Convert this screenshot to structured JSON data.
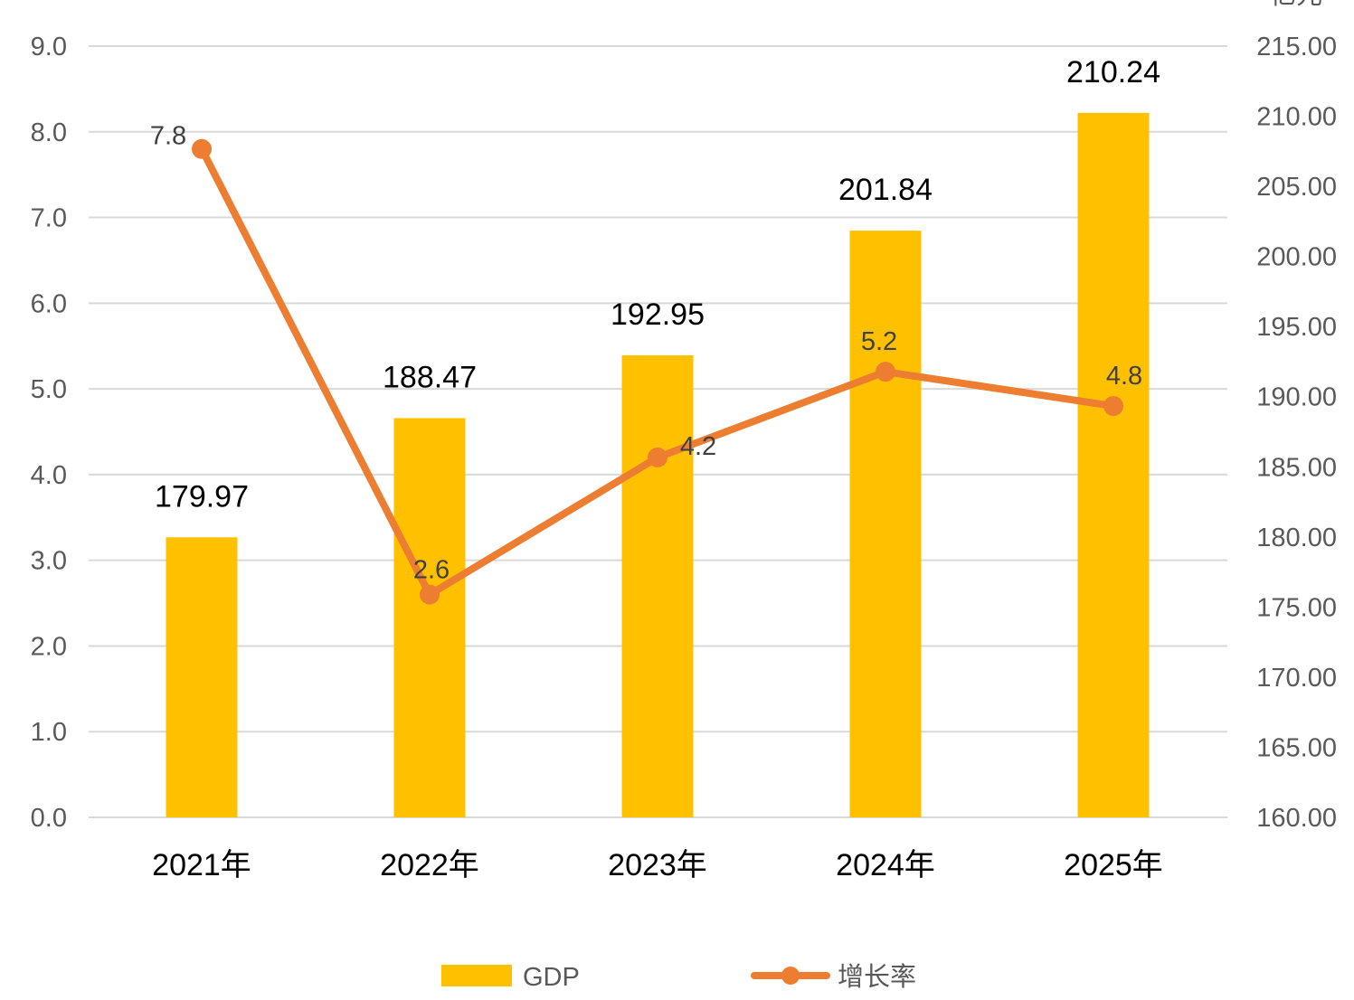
{
  "chart_data": {
    "type": "bar+line",
    "categories": [
      "2021年",
      "2022年",
      "2023年",
      "2024年",
      "2025年"
    ],
    "series": [
      {
        "name": "GDP",
        "type": "bar",
        "axis": "right",
        "values": [
          179.97,
          188.47,
          192.95,
          201.84,
          210.24
        ],
        "labels": [
          "179.97",
          "188.47",
          "192.95",
          "201.84",
          "210.24"
        ],
        "color": "#FFC000"
      },
      {
        "name": "增长率",
        "type": "line",
        "axis": "left",
        "values": [
          7.8,
          2.6,
          4.2,
          5.2,
          4.8
        ],
        "labels": [
          "7.8",
          "2.6",
          "4.2",
          "5.2",
          "4.8"
        ],
        "color": "#ED7D31"
      }
    ],
    "left_axis": {
      "min": 0,
      "max": 9,
      "step": 1,
      "ticks": [
        "0.0",
        "1.0",
        "2.0",
        "3.0",
        "4.0",
        "5.0",
        "6.0",
        "7.0",
        "8.0",
        "9.0"
      ]
    },
    "right_axis": {
      "unit": "亿元",
      "min": 160,
      "max": 215,
      "step": 5,
      "ticks": [
        "160.00",
        "165.00",
        "170.00",
        "175.00",
        "180.00",
        "185.00",
        "190.00",
        "195.00",
        "200.00",
        "205.00",
        "210.00",
        "215.00"
      ]
    },
    "grid": true,
    "legend": "bottom",
    "colors": {
      "grid": "#D9D9D9",
      "bar": "#FFC000",
      "line": "#ED7D31"
    }
  }
}
